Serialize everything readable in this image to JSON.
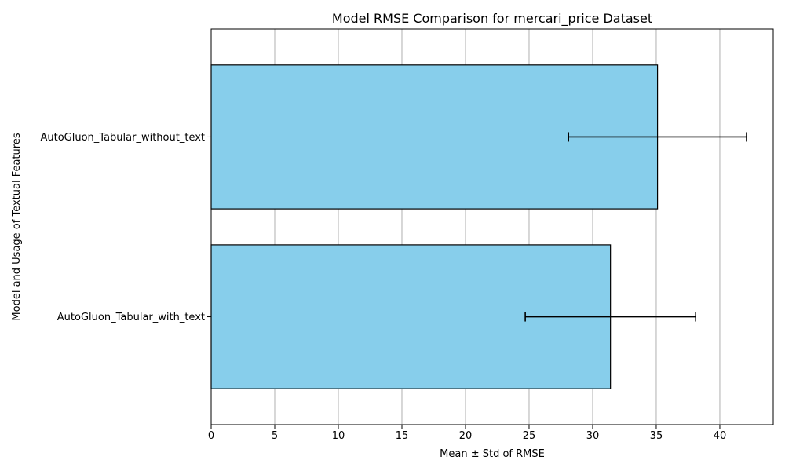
{
  "chart_data": {
    "type": "bar",
    "orientation": "horizontal",
    "title": "Model RMSE Comparison for mercari_price Dataset",
    "xlabel": "Mean ± Std of RMSE",
    "ylabel": "Model and Usage of Textual Features",
    "categories": [
      "AutoGluon_Tabular_with_text",
      "AutoGluon_Tabular_without_text"
    ],
    "values": [
      31.4,
      35.1
    ],
    "errors": [
      6.7,
      7.0
    ],
    "xlim": [
      0,
      44.2
    ],
    "xticks": [
      0,
      5,
      10,
      15,
      20,
      25,
      30,
      35,
      40
    ],
    "grid": "x",
    "bar_color": "#87CEEB",
    "edge_color": "#000000"
  }
}
